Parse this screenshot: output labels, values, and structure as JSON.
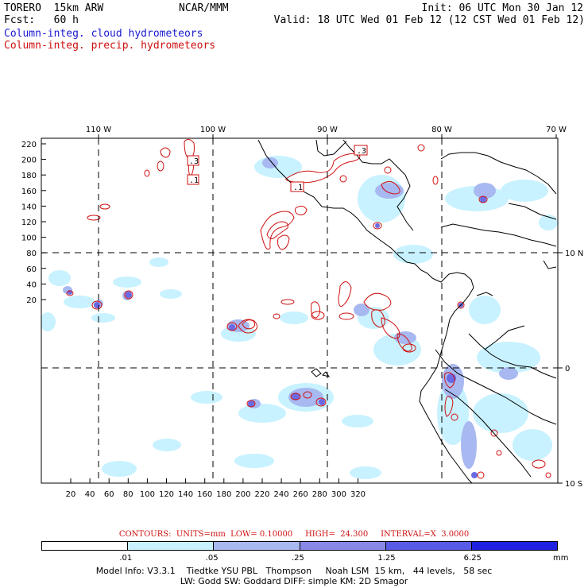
{
  "header": {
    "model": "TORERO  15km ARW",
    "org": "NCAR/MMM",
    "init": "Init: 06 UTC Mon 30 Jan 12",
    "fcst": "Fcst:   60 h",
    "valid": "Valid: 18 UTC Wed 01 Feb 12 (12 CST Wed 01 Feb 12)",
    "field1": "Column-integ. cloud hydrometeors",
    "field2": "Column-integ. precip. hydrometeors"
  },
  "map": {
    "lon_labels": [
      "110 W",
      "100 W",
      "90 W",
      "80 W",
      "70 W"
    ],
    "lat_labels": [
      "10 N",
      "0",
      "10 S"
    ],
    "y_ticks": [
      "220",
      "200",
      "180",
      "160",
      "140",
      "120",
      "100",
      "80",
      "60",
      "40",
      "20"
    ],
    "x_ticks": [
      "20",
      "40",
      "60",
      "80",
      "100",
      "120",
      "140",
      "160",
      "180",
      "200",
      "220",
      "240",
      "260",
      "280",
      "300",
      "320"
    ],
    "contour_labels": [
      ".3",
      ".1",
      ".1",
      ".3"
    ]
  },
  "legend": {
    "contour_note": "CONTOURS:  UNITS=mm  LOW= 0.10000     HIGH=  24.300     INTERVAL=X  3.0000",
    "bins": [
      ".01",
      ".05",
      ".25",
      "1.25",
      "6.25"
    ],
    "unit": "mm",
    "colors": [
      "#ffffff",
      "#c8f2ff",
      "#a8b8f0",
      "#8888e8",
      "#5a5ae8",
      "#2020e0"
    ]
  },
  "footer": {
    "line1": "Model Info: V3.3.1    Tiedtke YSU PBL   Thompson     Noah LSM  15 km,   44 levels,   58 sec",
    "line2": "LW: Godd SW: Goddard DIFF: simple KM: 2D Smagor"
  }
}
